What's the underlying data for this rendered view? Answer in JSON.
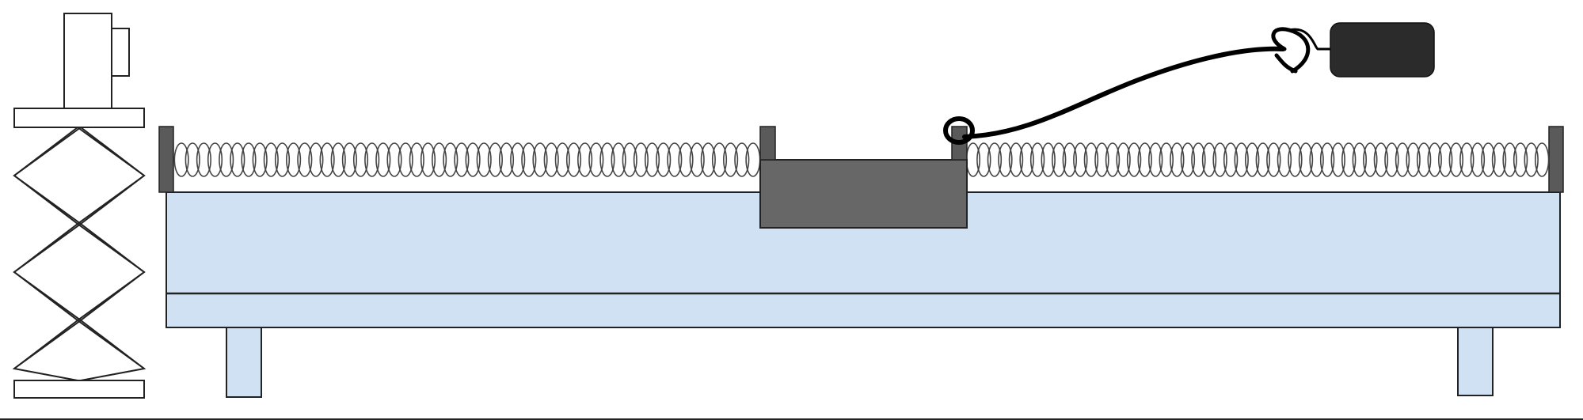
{
  "figure": {
    "description_visible_text": "",
    "colors": {
      "track_fill": "#cfe1f2",
      "outline": "#222222",
      "cart_fill": "#676767",
      "mass_fill": "#2b2b2b",
      "post_fill": "#5a5a5a",
      "string": "#000000",
      "spring": "#444444",
      "scissor_lift_fill": "#ffffff"
    },
    "components": {
      "scissor_lift": "scissor-lift",
      "motion_sensor": "motion-sensor",
      "air_track": "air-track",
      "glider_cart": "glider-cart",
      "left_spring": "spring",
      "right_spring": "spring",
      "hanging_mass": "hanging-mass",
      "string": "string"
    },
    "spring_coils": {
      "left": 52,
      "right": 54
    }
  }
}
